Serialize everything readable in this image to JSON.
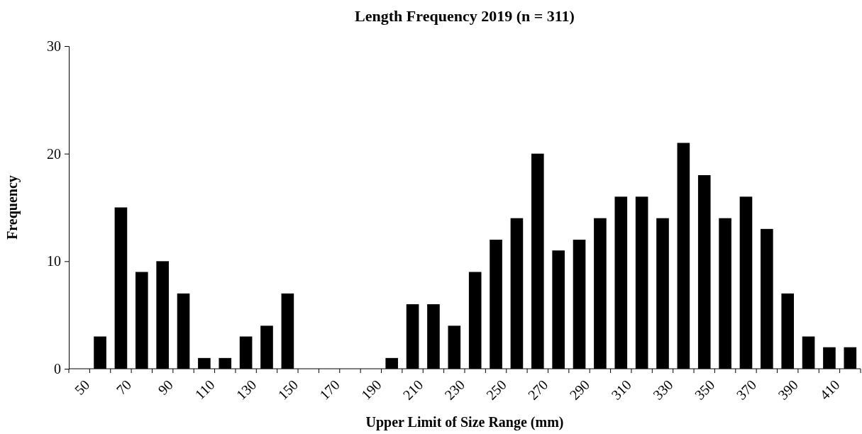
{
  "chart_data": {
    "type": "bar",
    "title": "Length Frequency 2019 (n = 311)",
    "xlabel": "Upper Limit of Size Range (mm)",
    "ylabel": "Frequency",
    "categories": [
      "50",
      null,
      "70",
      null,
      "90",
      null,
      "110",
      null,
      "130",
      null,
      "150",
      null,
      "170",
      null,
      "190",
      null,
      "210",
      null,
      "230",
      null,
      "250",
      null,
      "270",
      null,
      "290",
      null,
      "310",
      null,
      "330",
      null,
      "350",
      null,
      "370",
      null,
      "390",
      null,
      "410",
      null
    ],
    "values": [
      0,
      3,
      15,
      9,
      10,
      7,
      1,
      1,
      3,
      4,
      7,
      0,
      0,
      0,
      0,
      1,
      6,
      6,
      4,
      9,
      12,
      14,
      20,
      11,
      12,
      14,
      16,
      16,
      14,
      21,
      18,
      14,
      16,
      13,
      7,
      3,
      2,
      2
    ],
    "color": "#000000",
    "ylim": [
      0,
      30
    ],
    "yticks": [
      0,
      10,
      20,
      30
    ],
    "grid": false
  }
}
